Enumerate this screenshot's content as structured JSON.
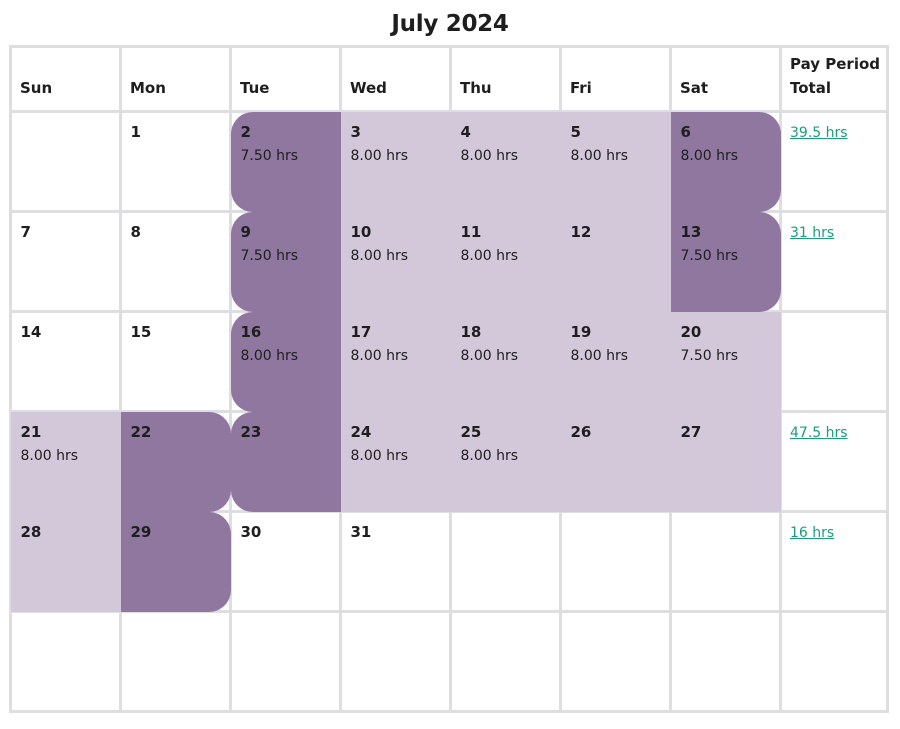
{
  "calendar": {
    "title": "July 2024",
    "headers": [
      "Sun",
      "Mon",
      "Tue",
      "Wed",
      "Thu",
      "Fri",
      "Sat"
    ],
    "total_header_line1": "Pay Period",
    "total_header_line2": "Total"
  },
  "weeks": [
    {
      "days": [
        {
          "day": "",
          "hours": ""
        },
        {
          "day": "1",
          "hours": ""
        },
        {
          "day": "2",
          "hours": "7.50 hrs"
        },
        {
          "day": "3",
          "hours": "8.00 hrs"
        },
        {
          "day": "4",
          "hours": "8.00 hrs"
        },
        {
          "day": "5",
          "hours": "8.00 hrs"
        },
        {
          "day": "6",
          "hours": "8.00 hrs"
        }
      ],
      "total": "39.5 hrs"
    },
    {
      "days": [
        {
          "day": "7",
          "hours": ""
        },
        {
          "day": "8",
          "hours": ""
        },
        {
          "day": "9",
          "hours": "7.50 hrs"
        },
        {
          "day": "10",
          "hours": "8.00 hrs"
        },
        {
          "day": "11",
          "hours": "8.00 hrs"
        },
        {
          "day": "12",
          "hours": ""
        },
        {
          "day": "13",
          "hours": "7.50 hrs"
        }
      ],
      "total": "31 hrs"
    },
    {
      "days": [
        {
          "day": "14",
          "hours": ""
        },
        {
          "day": "15",
          "hours": ""
        },
        {
          "day": "16",
          "hours": "8.00 hrs"
        },
        {
          "day": "17",
          "hours": "8.00 hrs"
        },
        {
          "day": "18",
          "hours": "8.00 hrs"
        },
        {
          "day": "19",
          "hours": "8.00 hrs"
        },
        {
          "day": "20",
          "hours": "7.50 hrs"
        }
      ],
      "total": ""
    },
    {
      "days": [
        {
          "day": "21",
          "hours": "8.00 hrs"
        },
        {
          "day": "22",
          "hours": ""
        },
        {
          "day": "23",
          "hours": ""
        },
        {
          "day": "24",
          "hours": "8.00 hrs"
        },
        {
          "day": "25",
          "hours": "8.00 hrs"
        },
        {
          "day": "26",
          "hours": ""
        },
        {
          "day": "27",
          "hours": ""
        }
      ],
      "total": "47.5 hrs"
    },
    {
      "days": [
        {
          "day": "28",
          "hours": ""
        },
        {
          "day": "29",
          "hours": ""
        },
        {
          "day": "30",
          "hours": ""
        },
        {
          "day": "31",
          "hours": ""
        },
        {
          "day": "",
          "hours": ""
        },
        {
          "day": "",
          "hours": ""
        },
        {
          "day": "",
          "hours": ""
        }
      ],
      "total": "16 hrs"
    },
    {
      "days": [
        {
          "day": "",
          "hours": ""
        },
        {
          "day": "",
          "hours": ""
        },
        {
          "day": "",
          "hours": ""
        },
        {
          "day": "",
          "hours": ""
        },
        {
          "day": "",
          "hours": ""
        },
        {
          "day": "",
          "hours": ""
        },
        {
          "day": "",
          "hours": ""
        }
      ],
      "total": ""
    }
  ],
  "colors": {
    "period_fill": "#d3c7da",
    "period_edge": "#8f77a0",
    "total_link": "#1a9e7a",
    "grid_line": "#dedee2"
  }
}
